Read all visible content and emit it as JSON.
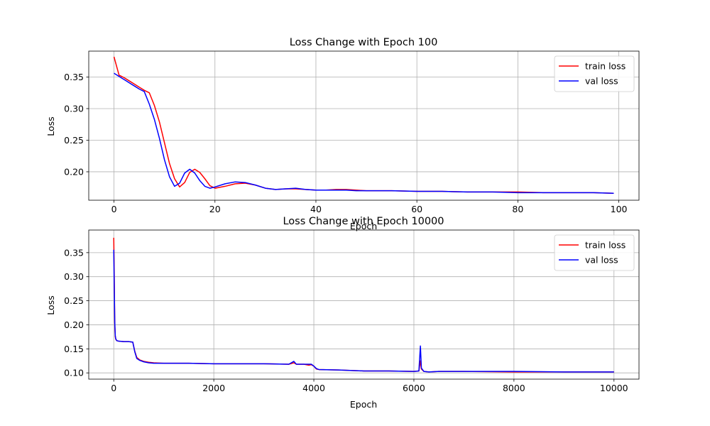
{
  "chart_data": [
    {
      "type": "line",
      "title": "Loss Change with Epoch 100",
      "xlabel": "Epoch",
      "ylabel": "Loss",
      "xlim": [
        -5,
        104
      ],
      "ylim": [
        0.155,
        0.391
      ],
      "xticks": [
        0,
        20,
        40,
        60,
        80,
        100
      ],
      "yticks": [
        0.2,
        0.25,
        0.3,
        0.35
      ],
      "grid": true,
      "legend_position": "top-right",
      "series": [
        {
          "name": "train loss",
          "color": "#ff0000",
          "x": [
            0,
            1,
            2,
            3,
            4,
            5,
            6,
            7,
            8,
            9,
            10,
            11,
            12,
            13,
            14,
            15,
            16,
            17,
            18,
            19,
            20,
            22,
            24,
            26,
            28,
            30,
            32,
            34,
            36,
            38,
            40,
            42,
            44,
            46,
            48,
            50,
            55,
            60,
            65,
            70,
            75,
            80,
            85,
            90,
            95,
            99
          ],
          "y": [
            0.382,
            0.353,
            0.349,
            0.344,
            0.339,
            0.334,
            0.329,
            0.325,
            0.305,
            0.279,
            0.246,
            0.213,
            0.189,
            0.176,
            0.183,
            0.199,
            0.204,
            0.199,
            0.189,
            0.178,
            0.174,
            0.177,
            0.181,
            0.182,
            0.179,
            0.174,
            0.172,
            0.173,
            0.173,
            0.172,
            0.171,
            0.171,
            0.172,
            0.172,
            0.171,
            0.17,
            0.17,
            0.169,
            0.169,
            0.168,
            0.168,
            0.168,
            0.167,
            0.167,
            0.167,
            0.166
          ]
        },
        {
          "name": "val loss",
          "color": "#0000ff",
          "x": [
            0,
            1,
            2,
            3,
            4,
            5,
            6,
            7,
            8,
            9,
            10,
            11,
            12,
            13,
            14,
            15,
            16,
            17,
            18,
            19,
            20,
            22,
            24,
            26,
            28,
            30,
            32,
            34,
            36,
            38,
            40,
            42,
            44,
            46,
            48,
            50,
            55,
            60,
            65,
            70,
            75,
            80,
            85,
            90,
            95,
            99
          ],
          "y": [
            0.356,
            0.351,
            0.346,
            0.341,
            0.336,
            0.331,
            0.327,
            0.307,
            0.283,
            0.253,
            0.219,
            0.192,
            0.177,
            0.182,
            0.198,
            0.204,
            0.198,
            0.186,
            0.177,
            0.174,
            0.176,
            0.181,
            0.184,
            0.183,
            0.179,
            0.174,
            0.172,
            0.173,
            0.174,
            0.172,
            0.171,
            0.171,
            0.171,
            0.171,
            0.17,
            0.17,
            0.17,
            0.169,
            0.169,
            0.168,
            0.168,
            0.167,
            0.167,
            0.167,
            0.167,
            0.166
          ]
        }
      ]
    },
    {
      "type": "line",
      "title": "Loss Change with Epoch 10000",
      "xlabel": "Epoch",
      "ylabel": "Loss",
      "xlim": [
        -500,
        10500
      ],
      "ylim": [
        0.087,
        0.397
      ],
      "xticks": [
        0,
        2000,
        4000,
        6000,
        8000,
        10000
      ],
      "yticks": [
        0.1,
        0.15,
        0.2,
        0.25,
        0.3,
        0.35
      ],
      "grid": true,
      "legend_position": "top-right",
      "series": [
        {
          "name": "train loss",
          "color": "#ff0000",
          "x": [
            0,
            10,
            20,
            30,
            40,
            60,
            100,
            200,
            300,
            380,
            420,
            460,
            520,
            600,
            700,
            800,
            1000,
            1500,
            2000,
            2500,
            3000,
            3500,
            3600,
            3650,
            3700,
            3800,
            3900,
            3950,
            4000,
            4050,
            4100,
            4500,
            5000,
            5500,
            6000,
            6100,
            6130,
            6150,
            6200,
            6300,
            6500,
            7000,
            8000,
            9000,
            10000
          ],
          "y": [
            0.381,
            0.3,
            0.2,
            0.175,
            0.17,
            0.167,
            0.166,
            0.165,
            0.165,
            0.164,
            0.145,
            0.132,
            0.127,
            0.124,
            0.122,
            0.121,
            0.12,
            0.12,
            0.119,
            0.119,
            0.119,
            0.118,
            0.121,
            0.118,
            0.118,
            0.118,
            0.116,
            0.117,
            0.114,
            0.108,
            0.107,
            0.106,
            0.104,
            0.104,
            0.103,
            0.104,
            0.125,
            0.108,
            0.103,
            0.102,
            0.103,
            0.103,
            0.102,
            0.102,
            0.102
          ]
        },
        {
          "name": "val loss",
          "color": "#0000ff",
          "x": [
            0,
            10,
            20,
            30,
            40,
            60,
            100,
            200,
            300,
            380,
            420,
            460,
            520,
            600,
            700,
            800,
            1000,
            1500,
            2000,
            2500,
            3000,
            3500,
            3600,
            3650,
            3700,
            3800,
            3900,
            3950,
            4000,
            4050,
            4100,
            4500,
            5000,
            5500,
            6000,
            6100,
            6130,
            6150,
            6200,
            6300,
            6500,
            7000,
            8000,
            9000,
            10000
          ],
          "y": [
            0.356,
            0.28,
            0.205,
            0.178,
            0.171,
            0.167,
            0.166,
            0.165,
            0.165,
            0.164,
            0.144,
            0.13,
            0.126,
            0.123,
            0.121,
            0.12,
            0.12,
            0.12,
            0.119,
            0.119,
            0.119,
            0.118,
            0.124,
            0.118,
            0.118,
            0.118,
            0.118,
            0.118,
            0.114,
            0.109,
            0.107,
            0.106,
            0.104,
            0.104,
            0.103,
            0.104,
            0.156,
            0.11,
            0.103,
            0.102,
            0.103,
            0.103,
            0.103,
            0.102,
            0.102
          ]
        }
      ]
    }
  ]
}
